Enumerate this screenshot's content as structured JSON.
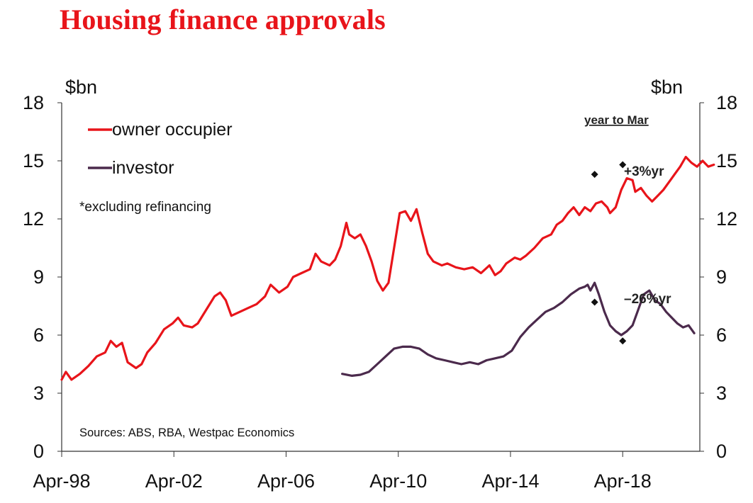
{
  "chart_data": {
    "type": "line",
    "title": "Housing finance approvals",
    "y_left_label": "$bn",
    "y_right_label": "$bn",
    "ylim": [
      0,
      18
    ],
    "y_ticks": [
      "0",
      "3",
      "6",
      "9",
      "12",
      "15",
      "18"
    ],
    "xlim": [
      1998.25,
      2021.0
    ],
    "x_ticks": [
      {
        "label": "Apr-98",
        "value": 1998.25
      },
      {
        "label": "Apr-02",
        "value": 2002.25
      },
      {
        "label": "Apr-06",
        "value": 2006.25
      },
      {
        "label": "Apr-10",
        "value": 2010.25
      },
      {
        "label": "Apr-14",
        "value": 2014.25
      },
      {
        "label": "Apr-18",
        "value": 2018.25
      }
    ],
    "period_label": "year to Mar",
    "note": "*excluding refinancing",
    "source": "Sources: ABS, RBA, Westpac Economics",
    "series": [
      {
        "name": "owner occupier",
        "color": "#e8141a",
        "annotation": "+3%yr",
        "markers": [
          [
            2017.25,
            14.3
          ],
          [
            2018.25,
            14.8
          ]
        ],
        "points": [
          [
            1998.25,
            3.7
          ],
          [
            1998.4,
            4.1
          ],
          [
            1998.6,
            3.7
          ],
          [
            1998.9,
            4.0
          ],
          [
            1999.2,
            4.4
          ],
          [
            1999.5,
            4.9
          ],
          [
            1999.8,
            5.1
          ],
          [
            2000.0,
            5.7
          ],
          [
            2000.2,
            5.4
          ],
          [
            2000.4,
            5.6
          ],
          [
            2000.6,
            4.6
          ],
          [
            2000.9,
            4.3
          ],
          [
            2001.1,
            4.5
          ],
          [
            2001.3,
            5.1
          ],
          [
            2001.6,
            5.6
          ],
          [
            2001.9,
            6.3
          ],
          [
            2002.2,
            6.6
          ],
          [
            2002.4,
            6.9
          ],
          [
            2002.6,
            6.5
          ],
          [
            2002.9,
            6.4
          ],
          [
            2003.1,
            6.6
          ],
          [
            2003.4,
            7.3
          ],
          [
            2003.7,
            8.0
          ],
          [
            2003.9,
            8.2
          ],
          [
            2004.1,
            7.8
          ],
          [
            2004.3,
            7.0
          ],
          [
            2004.6,
            7.2
          ],
          [
            2004.9,
            7.4
          ],
          [
            2005.2,
            7.6
          ],
          [
            2005.5,
            8.0
          ],
          [
            2005.7,
            8.6
          ],
          [
            2006.0,
            8.2
          ],
          [
            2006.3,
            8.5
          ],
          [
            2006.5,
            9.0
          ],
          [
            2006.8,
            9.2
          ],
          [
            2007.1,
            9.4
          ],
          [
            2007.3,
            10.2
          ],
          [
            2007.5,
            9.8
          ],
          [
            2007.8,
            9.6
          ],
          [
            2008.0,
            9.9
          ],
          [
            2008.2,
            10.6
          ],
          [
            2008.4,
            11.8
          ],
          [
            2008.5,
            11.2
          ],
          [
            2008.7,
            11.0
          ],
          [
            2008.9,
            11.2
          ],
          [
            2009.1,
            10.6
          ],
          [
            2009.3,
            9.8
          ],
          [
            2009.5,
            8.8
          ],
          [
            2009.7,
            8.3
          ],
          [
            2009.9,
            8.7
          ],
          [
            2010.1,
            10.5
          ],
          [
            2010.3,
            12.3
          ],
          [
            2010.5,
            12.4
          ],
          [
            2010.7,
            11.9
          ],
          [
            2010.9,
            12.5
          ],
          [
            2011.1,
            11.3
          ],
          [
            2011.3,
            10.2
          ],
          [
            2011.5,
            9.8
          ],
          [
            2011.8,
            9.6
          ],
          [
            2012.0,
            9.7
          ],
          [
            2012.3,
            9.5
          ],
          [
            2012.6,
            9.4
          ],
          [
            2012.9,
            9.5
          ],
          [
            2013.2,
            9.2
          ],
          [
            2013.5,
            9.6
          ],
          [
            2013.7,
            9.1
          ],
          [
            2013.9,
            9.3
          ],
          [
            2014.1,
            9.7
          ],
          [
            2014.4,
            10.0
          ],
          [
            2014.6,
            9.9
          ],
          [
            2014.8,
            10.1
          ],
          [
            2015.1,
            10.5
          ],
          [
            2015.4,
            11.0
          ],
          [
            2015.7,
            11.2
          ],
          [
            2015.9,
            11.7
          ],
          [
            2016.1,
            11.9
          ],
          [
            2016.3,
            12.3
          ],
          [
            2016.5,
            12.6
          ],
          [
            2016.7,
            12.2
          ],
          [
            2016.9,
            12.6
          ],
          [
            2017.1,
            12.4
          ],
          [
            2017.3,
            12.8
          ],
          [
            2017.5,
            12.9
          ],
          [
            2017.7,
            12.6
          ],
          [
            2017.8,
            12.3
          ],
          [
            2018.0,
            12.6
          ],
          [
            2018.2,
            13.5
          ],
          [
            2018.4,
            14.1
          ],
          [
            2018.6,
            14.0
          ],
          [
            2018.7,
            13.4
          ],
          [
            2018.9,
            13.6
          ],
          [
            2019.1,
            13.2
          ],
          [
            2019.3,
            12.9
          ],
          [
            2019.5,
            13.2
          ],
          [
            2019.7,
            13.5
          ],
          [
            2019.9,
            13.9
          ],
          [
            2020.1,
            14.3
          ],
          [
            2020.3,
            14.7
          ],
          [
            2020.5,
            15.2
          ],
          [
            2020.7,
            14.9
          ],
          [
            2020.9,
            14.7
          ],
          [
            2021.1,
            15.0
          ],
          [
            2021.3,
            14.7
          ],
          [
            2021.5,
            14.8
          ]
        ]
      },
      {
        "name": "investor",
        "color": "#4b2a4c",
        "annotation": "–26%yr",
        "markers": [
          [
            2017.25,
            7.7
          ],
          [
            2018.25,
            5.7
          ]
        ],
        "points": [
          [
            2008.25,
            4.0
          ],
          [
            2008.6,
            3.9
          ],
          [
            2008.9,
            3.95
          ],
          [
            2009.2,
            4.1
          ],
          [
            2009.5,
            4.5
          ],
          [
            2009.8,
            4.9
          ],
          [
            2010.1,
            5.3
          ],
          [
            2010.4,
            5.4
          ],
          [
            2010.7,
            5.4
          ],
          [
            2011.0,
            5.3
          ],
          [
            2011.3,
            5.0
          ],
          [
            2011.6,
            4.8
          ],
          [
            2011.9,
            4.7
          ],
          [
            2012.2,
            4.6
          ],
          [
            2012.5,
            4.5
          ],
          [
            2012.8,
            4.6
          ],
          [
            2013.1,
            4.5
          ],
          [
            2013.4,
            4.7
          ],
          [
            2013.7,
            4.8
          ],
          [
            2014.0,
            4.9
          ],
          [
            2014.3,
            5.2
          ],
          [
            2014.6,
            5.9
          ],
          [
            2014.9,
            6.4
          ],
          [
            2015.2,
            6.8
          ],
          [
            2015.5,
            7.2
          ],
          [
            2015.8,
            7.4
          ],
          [
            2016.1,
            7.7
          ],
          [
            2016.4,
            8.1
          ],
          [
            2016.7,
            8.4
          ],
          [
            2016.9,
            8.5
          ],
          [
            2017.0,
            8.6
          ],
          [
            2017.1,
            8.3
          ],
          [
            2017.25,
            8.7
          ],
          [
            2017.4,
            8.1
          ],
          [
            2017.6,
            7.2
          ],
          [
            2017.8,
            6.5
          ],
          [
            2018.0,
            6.2
          ],
          [
            2018.2,
            6.0
          ],
          [
            2018.4,
            6.2
          ],
          [
            2018.6,
            6.5
          ],
          [
            2018.8,
            7.3
          ],
          [
            2019.0,
            8.1
          ],
          [
            2019.2,
            8.3
          ],
          [
            2019.4,
            7.8
          ],
          [
            2019.6,
            7.6
          ],
          [
            2019.8,
            7.2
          ],
          [
            2020.0,
            6.9
          ],
          [
            2020.2,
            6.6
          ],
          [
            2020.4,
            6.4
          ],
          [
            2020.6,
            6.5
          ],
          [
            2020.8,
            6.1
          ]
        ]
      }
    ]
  }
}
